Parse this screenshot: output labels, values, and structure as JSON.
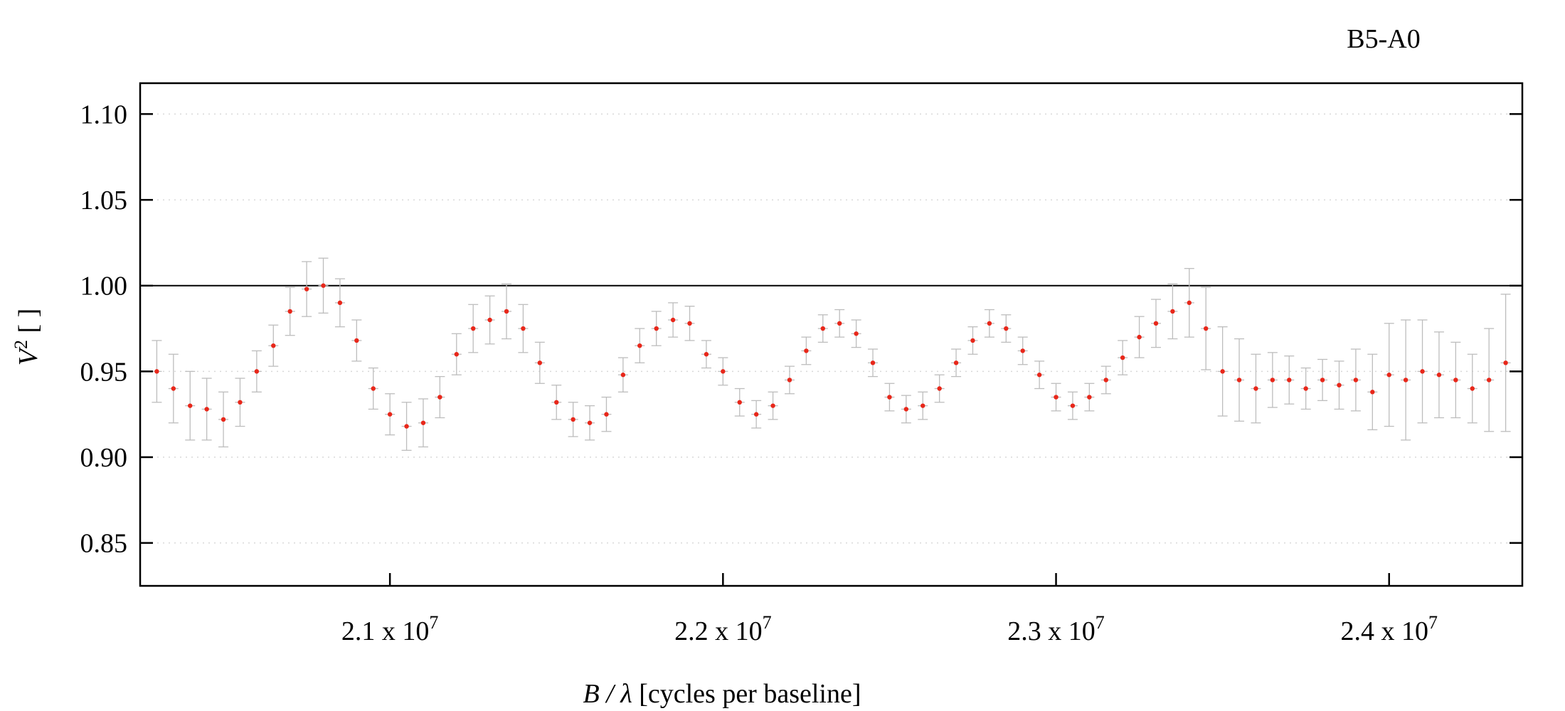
{
  "chart_data": {
    "type": "scatter",
    "title": "B5-A0",
    "xlabel": {
      "italic": "B / λ",
      "rest": " [cycles per baseline]"
    },
    "ylabel": {
      "italic": "V",
      "sup": "2",
      "rest": " [ ]"
    },
    "xlim": [
      20250000,
      24400000
    ],
    "ylim": [
      0.825,
      1.118
    ],
    "x_ticks": [
      {
        "value": 21000000,
        "mantissa": "2.1",
        "mid": " x 10",
        "exp": "7"
      },
      {
        "value": 22000000,
        "mantissa": "2.2",
        "mid": " x 10",
        "exp": "7"
      },
      {
        "value": 23000000,
        "mantissa": "2.3",
        "mid": " x 10",
        "exp": "7"
      },
      {
        "value": 24000000,
        "mantissa": "2.4",
        "mid": " x 10",
        "exp": "7"
      }
    ],
    "y_ticks": [
      {
        "value": 0.85,
        "label": "0.85"
      },
      {
        "value": 0.9,
        "label": "0.90"
      },
      {
        "value": 0.95,
        "label": "0.95"
      },
      {
        "value": 1.0,
        "label": "1.00"
      },
      {
        "value": 1.05,
        "label": "1.05"
      },
      {
        "value": 1.1,
        "label": "1.10"
      }
    ],
    "reference_line": 1.0,
    "grid": "horizontal dotted",
    "colors": {
      "points": "#e8271a",
      "errorbars": "#bdbdbd",
      "frame": "#000000",
      "grid": "#d9d9d9"
    },
    "series": [
      {
        "x": [
          20300000,
          20350000,
          20400000,
          20450000,
          20500000,
          20550000,
          20600000,
          20650000,
          20700000,
          20750000,
          20800000,
          20850000,
          20900000,
          20950000,
          21000000,
          21050000,
          21100000,
          21150000,
          21200000,
          21250000,
          21300000,
          21350000,
          21400000,
          21450000,
          21500000,
          21550000,
          21600000,
          21650000,
          21700000,
          21750000,
          21800000,
          21850000,
          21900000,
          21950000,
          22000000,
          22050000,
          22100000,
          22150000,
          22200000,
          22250000,
          22300000,
          22350000,
          22400000,
          22450000,
          22500000,
          22550000,
          22600000,
          22650000,
          22700000,
          22750000,
          22800000,
          22850000,
          22900000,
          22950000,
          23000000,
          23050000,
          23100000,
          23150000,
          23200000,
          23250000,
          23300000,
          23350000,
          23400000,
          23450000,
          23500000,
          23550000,
          23600000,
          23650000,
          23700000,
          23750000,
          23800000,
          23850000,
          23900000,
          23950000,
          24000000,
          24050000,
          24100000,
          24150000,
          24200000,
          24250000,
          24300000,
          24350000
        ],
        "y": [
          0.95,
          0.94,
          0.93,
          0.928,
          0.922,
          0.932,
          0.95,
          0.965,
          0.985,
          0.998,
          1.0,
          0.99,
          0.968,
          0.94,
          0.925,
          0.918,
          0.92,
          0.935,
          0.96,
          0.975,
          0.98,
          0.985,
          0.975,
          0.955,
          0.932,
          0.922,
          0.92,
          0.925,
          0.948,
          0.965,
          0.975,
          0.98,
          0.978,
          0.96,
          0.95,
          0.932,
          0.925,
          0.93,
          0.945,
          0.962,
          0.975,
          0.978,
          0.972,
          0.955,
          0.935,
          0.928,
          0.93,
          0.94,
          0.955,
          0.968,
          0.978,
          0.975,
          0.962,
          0.948,
          0.935,
          0.93,
          0.935,
          0.945,
          0.958,
          0.97,
          0.978,
          0.985,
          0.99,
          0.975,
          0.95,
          0.945,
          0.94,
          0.945,
          0.945,
          0.94,
          0.945,
          0.942,
          0.945,
          0.938,
          0.948,
          0.945,
          0.95,
          0.948,
          0.945,
          0.94,
          0.945,
          0.955
        ],
        "err": [
          0.018,
          0.02,
          0.02,
          0.018,
          0.016,
          0.014,
          0.012,
          0.012,
          0.014,
          0.016,
          0.016,
          0.014,
          0.012,
          0.012,
          0.012,
          0.014,
          0.014,
          0.012,
          0.012,
          0.014,
          0.014,
          0.016,
          0.014,
          0.012,
          0.01,
          0.01,
          0.01,
          0.01,
          0.01,
          0.01,
          0.01,
          0.01,
          0.01,
          0.008,
          0.008,
          0.008,
          0.008,
          0.008,
          0.008,
          0.008,
          0.008,
          0.008,
          0.008,
          0.008,
          0.008,
          0.008,
          0.008,
          0.008,
          0.008,
          0.008,
          0.008,
          0.008,
          0.008,
          0.008,
          0.008,
          0.008,
          0.008,
          0.008,
          0.01,
          0.012,
          0.014,
          0.016,
          0.02,
          0.024,
          0.026,
          0.024,
          0.02,
          0.016,
          0.014,
          0.012,
          0.012,
          0.014,
          0.018,
          0.022,
          0.03,
          0.035,
          0.03,
          0.025,
          0.022,
          0.02,
          0.03,
          0.04
        ]
      }
    ]
  }
}
